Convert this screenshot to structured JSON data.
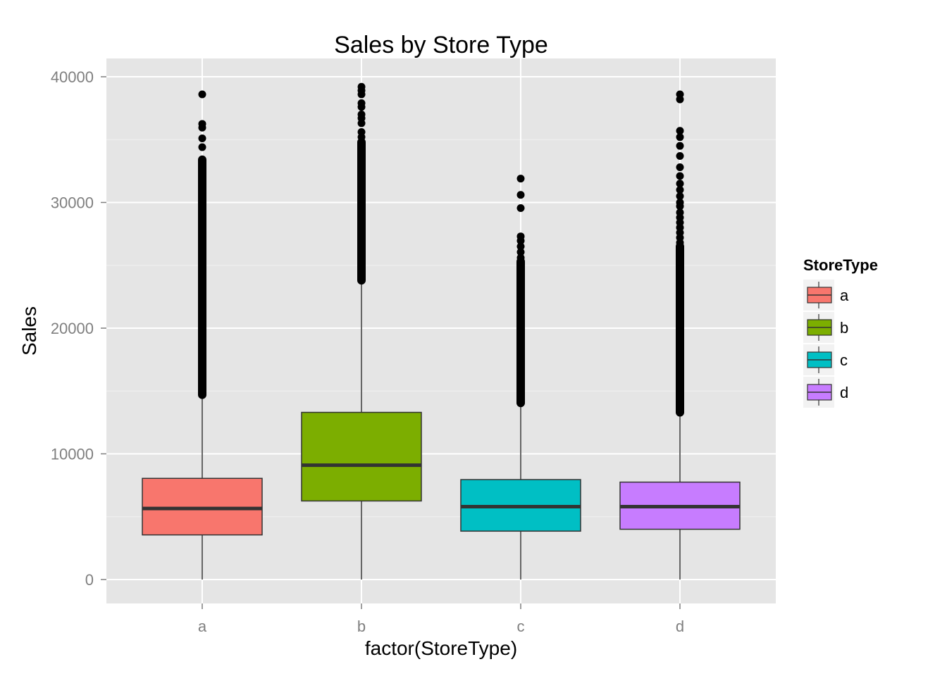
{
  "chart_data": {
    "type": "box",
    "title": "Sales by Store Type",
    "xlabel": "factor(StoreType)",
    "ylabel": "Sales",
    "ylim": [
      -1900,
      40900
    ],
    "yticks": [
      0,
      10000,
      20000,
      30000,
      40000
    ],
    "grid": true,
    "legend": {
      "title": "StoreType",
      "position": "right"
    },
    "categories": [
      "a",
      "b",
      "c",
      "d"
    ],
    "series": [
      {
        "name": "a",
        "color": "#F8766D",
        "min": 0,
        "q1": 3550,
        "median": 5650,
        "q3": 8050,
        "whisker_high": 14700,
        "outliers": [
          38600,
          36250,
          35950,
          35100,
          34400
        ],
        "outlier_band": [
          14700,
          33400
        ]
      },
      {
        "name": "b",
        "color": "#7CAE00",
        "min": 0,
        "q1": 6250,
        "median": 9100,
        "q3": 13300,
        "whisker_high": 23800,
        "outliers": [
          39200,
          38900,
          38600,
          37900,
          37600,
          37000,
          36700,
          36300,
          35600,
          35200
        ],
        "outlier_band": [
          23800,
          34800
        ]
      },
      {
        "name": "c",
        "color": "#00BFC4",
        "min": 0,
        "q1": 3850,
        "median": 5800,
        "q3": 7950,
        "whisker_high": 14050,
        "outliers": [
          31900,
          30600,
          29550,
          27300,
          26950,
          26500,
          26050,
          25600
        ],
        "outlier_band": [
          14050,
          25300
        ]
      },
      {
        "name": "d",
        "color": "#C77CFF",
        "min": 0,
        "q1": 4000,
        "median": 5800,
        "q3": 7750,
        "whisker_high": 13300,
        "outliers": [
          38600,
          38200,
          35700,
          35200,
          34500,
          33700,
          32800,
          32100,
          31500,
          31000,
          30500,
          30000,
          29700,
          29200,
          28800,
          28400,
          28000,
          27600,
          27200,
          26800
        ],
        "outlier_band": [
          13300,
          26500
        ]
      }
    ]
  }
}
